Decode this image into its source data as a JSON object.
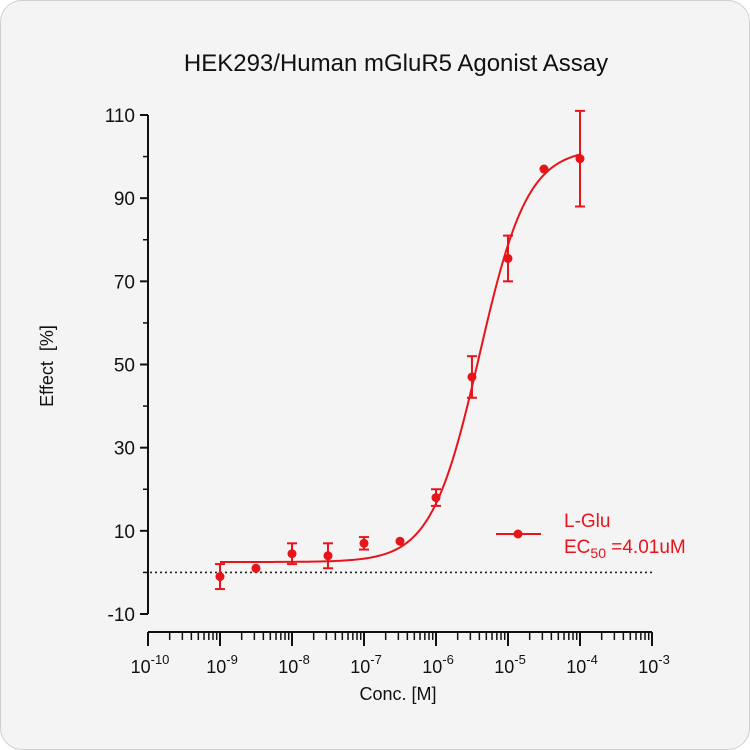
{
  "chart_data": {
    "type": "scatter",
    "title": "HEK293/Human mGluR5 Agonist Assay",
    "xlabel": "Conc. [M]",
    "ylabel": "Effect  [%]",
    "x_scale": "log",
    "xlim": [
      1e-10,
      0.001
    ],
    "ylim": [
      -10,
      110
    ],
    "x_ticks": [
      {
        "base": "10",
        "exp": "-10",
        "value": 1e-10
      },
      {
        "base": "10",
        "exp": "-9",
        "value": 1e-09
      },
      {
        "base": "10",
        "exp": "-8",
        "value": 1e-08
      },
      {
        "base": "10",
        "exp": "-7",
        "value": 1e-07
      },
      {
        "base": "10",
        "exp": "-6",
        "value": 1e-06
      },
      {
        "base": "10",
        "exp": "-5",
        "value": 1e-05
      },
      {
        "base": "10",
        "exp": "-4",
        "value": 0.0001
      },
      {
        "base": "10",
        "exp": "-3",
        "value": 0.001
      }
    ],
    "y_ticks": [
      "110",
      "90",
      "70",
      "50",
      "30",
      "10",
      "-10"
    ],
    "grid": false,
    "baseline": 0,
    "legend_placement": "right",
    "color": "#e8141b",
    "series": [
      {
        "name": "L-Glu",
        "ec50_label": "EC",
        "ec50_sub": "50",
        "ec50_value": " =4.01uM",
        "points": [
          {
            "x": 1e-09,
            "y": -1.0,
            "err": 3.0
          },
          {
            "x": 3.16e-09,
            "y": 1.0,
            "err": 0
          },
          {
            "x": 1e-08,
            "y": 4.5,
            "err": 2.5
          },
          {
            "x": 3.16e-08,
            "y": 4.0,
            "err": 3.0
          },
          {
            "x": 1e-07,
            "y": 7.0,
            "err": 1.5
          },
          {
            "x": 3.16e-07,
            "y": 7.5,
            "err": 0
          },
          {
            "x": 1e-06,
            "y": 18.0,
            "err": 2.0
          },
          {
            "x": 3.16e-06,
            "y": 47.0,
            "err": 5.0
          },
          {
            "x": 1e-05,
            "y": 75.5,
            "err": 5.5
          },
          {
            "x": 3.16e-05,
            "y": 97.0,
            "err": 0
          },
          {
            "x": 0.0001,
            "y": 99.5,
            "err": 11.5
          }
        ],
        "fit": {
          "bottom": 2.5,
          "top": 102.0,
          "ec50": 4.01e-06,
          "hill": 1.3
        }
      }
    ]
  }
}
